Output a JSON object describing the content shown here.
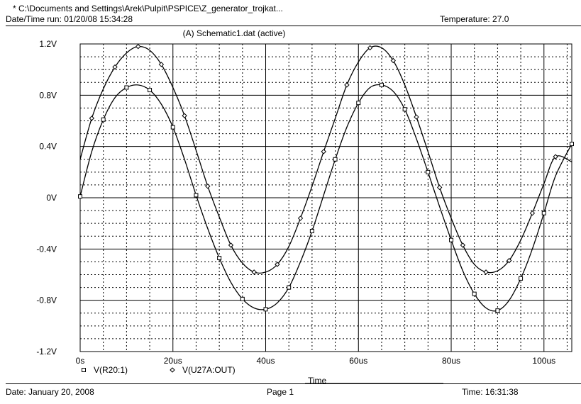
{
  "header": {
    "file_path": "* C:\\Documents and Settings\\Arek\\Pulpit\\PSPICE\\Z_generator_trojkat...",
    "run_datetime": "Date/Time run: 01/20/08 15:34:28",
    "temperature": "Temperature: 27.0"
  },
  "footer": {
    "date": "Date: January 20, 2008",
    "page": "Page 1",
    "time": "Time: 16:31:38"
  },
  "chart_data": {
    "type": "line",
    "title": "(A) Schematic1.dat (active)",
    "xlabel": "Time",
    "xlim": [
      0,
      106
    ],
    "ylim": [
      -1.2,
      1.2
    ],
    "grid": true,
    "x_ticks": [
      0,
      20,
      40,
      60,
      80,
      100
    ],
    "x_tick_labels": [
      "0s",
      "20us",
      "40us",
      "60us",
      "80us",
      "100us"
    ],
    "y_ticks": [
      1.2,
      0.8,
      0.4,
      0,
      -0.4,
      -0.8,
      -1.2
    ],
    "y_tick_labels": [
      "1.2V",
      "0.8V",
      "0.4V",
      "0V",
      "-0.4V",
      "-0.8V",
      "-1.2V"
    ],
    "series": [
      {
        "name": "V(R20:1)",
        "marker": "square",
        "x": [
          0,
          2.5,
          5,
          7.5,
          10,
          12.5,
          15,
          17.5,
          20,
          22.5,
          25,
          27.5,
          30,
          32.5,
          35,
          37.5,
          40,
          42.5,
          45,
          47.5,
          50,
          52.5,
          55,
          57.5,
          60,
          62.5,
          65,
          67.5,
          70,
          72.5,
          75,
          77.5,
          80,
          82.5,
          85,
          87.5,
          90,
          92.5,
          95,
          97.5,
          100,
          102.5,
          106
        ],
        "values": [
          0.01,
          0.36,
          0.61,
          0.78,
          0.86,
          0.88,
          0.84,
          0.73,
          0.55,
          0.3,
          0.02,
          -0.24,
          -0.47,
          -0.66,
          -0.79,
          -0.86,
          -0.87,
          -0.82,
          -0.7,
          -0.5,
          -0.26,
          0.02,
          0.3,
          0.55,
          0.74,
          0.86,
          0.88,
          0.83,
          0.69,
          0.46,
          0.2,
          -0.07,
          -0.33,
          -0.57,
          -0.75,
          -0.86,
          -0.88,
          -0.8,
          -0.63,
          -0.4,
          -0.12,
          0.17,
          0.42
        ]
      },
      {
        "name": "V(U27A:OUT)",
        "marker": "diamond",
        "x": [
          0,
          2.5,
          5,
          7.5,
          10,
          12.5,
          15,
          17.5,
          20,
          22.5,
          25,
          27.5,
          30,
          32.5,
          35,
          37.5,
          40,
          42.5,
          45,
          47.5,
          50,
          52.5,
          55,
          57.5,
          60,
          62.5,
          65,
          67.5,
          70,
          72.5,
          75,
          77.5,
          80,
          82.5,
          85,
          87.5,
          90,
          92.5,
          95,
          97.5,
          100,
          102.5,
          106
        ],
        "values": [
          0.3,
          0.62,
          0.85,
          1.02,
          1.13,
          1.18,
          1.15,
          1.04,
          0.86,
          0.64,
          0.37,
          0.09,
          -0.15,
          -0.37,
          -0.51,
          -0.58,
          -0.58,
          -0.52,
          -0.38,
          -0.16,
          0.09,
          0.36,
          0.62,
          0.88,
          1.06,
          1.17,
          1.17,
          1.07,
          0.88,
          0.63,
          0.36,
          0.08,
          -0.16,
          -0.37,
          -0.52,
          -0.58,
          -0.57,
          -0.49,
          -0.33,
          -0.12,
          0.11,
          0.32,
          0.28
        ]
      }
    ]
  }
}
